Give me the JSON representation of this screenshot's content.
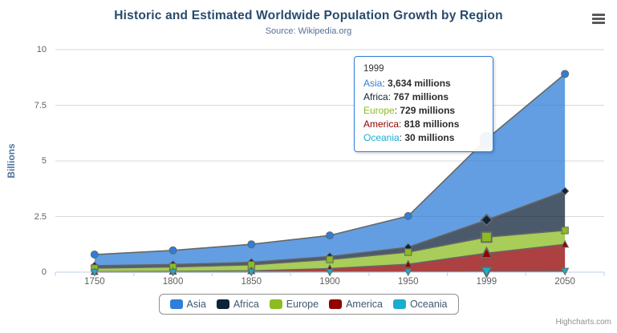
{
  "header": {
    "title": "Historic and Estimated Worldwide Population Growth by Region",
    "subtitle": "Source: Wikipedia.org"
  },
  "credits": "Highcharts.com",
  "export_menu": {
    "icon": "hamburger-icon"
  },
  "tooltip": {
    "header": "1999",
    "border_color": "#2f7ed8",
    "rows": [
      {
        "label": "Asia",
        "value": "3,634 millions",
        "color": "#2f7ed8"
      },
      {
        "label": "Africa",
        "value": "767 millions",
        "color": "#0d233a"
      },
      {
        "label": "Europe",
        "value": "729 millions",
        "color": "#8bbc21"
      },
      {
        "label": "America",
        "value": "818 millions",
        "color": "#910000"
      },
      {
        "label": "Oceania",
        "value": "30 millions",
        "color": "#1aadce"
      }
    ]
  },
  "chart_data": {
    "type": "area",
    "stacking": "normal",
    "title": "Historic and Estimated Worldwide Population Growth by Region",
    "subtitle": "Source: Wikipedia.org",
    "xlabel": "",
    "ylabel": "Billions",
    "unit": "millions",
    "ylim": [
      0,
      10
    ],
    "yticks": [
      0,
      2.5,
      5,
      7.5,
      10
    ],
    "grid": "horizontal",
    "legend_position": "bottom",
    "categories": [
      "1750",
      "1800",
      "1850",
      "1900",
      "1950",
      "1999",
      "2050"
    ],
    "hovered_category": "1999",
    "hover_index": 5,
    "line_color": "#666666",
    "fill_opacity": 0.75,
    "axis_line_color": "#c0d0e0",
    "grid_color": "#d8d8d8",
    "series": [
      {
        "name": "Asia",
        "color": "#2f7ed8",
        "marker": "circle",
        "values_millions": [
          502,
          635,
          809,
          947,
          1402,
          3634,
          5268
        ]
      },
      {
        "name": "Africa",
        "color": "#0d233a",
        "marker": "diamond",
        "values_millions": [
          106,
          107,
          111,
          133,
          221,
          767,
          1766
        ]
      },
      {
        "name": "Europe",
        "color": "#8bbc21",
        "marker": "square",
        "values_millions": [
          163,
          203,
          276,
          408,
          547,
          729,
          628
        ]
      },
      {
        "name": "America",
        "color": "#910000",
        "marker": "triangle-up",
        "values_millions": [
          18,
          31,
          54,
          156,
          339,
          818,
          1201
        ]
      },
      {
        "name": "Oceania",
        "color": "#1aadce",
        "marker": "triangle-down",
        "values_millions": [
          2,
          2,
          2,
          6,
          13,
          30,
          46
        ]
      }
    ]
  }
}
